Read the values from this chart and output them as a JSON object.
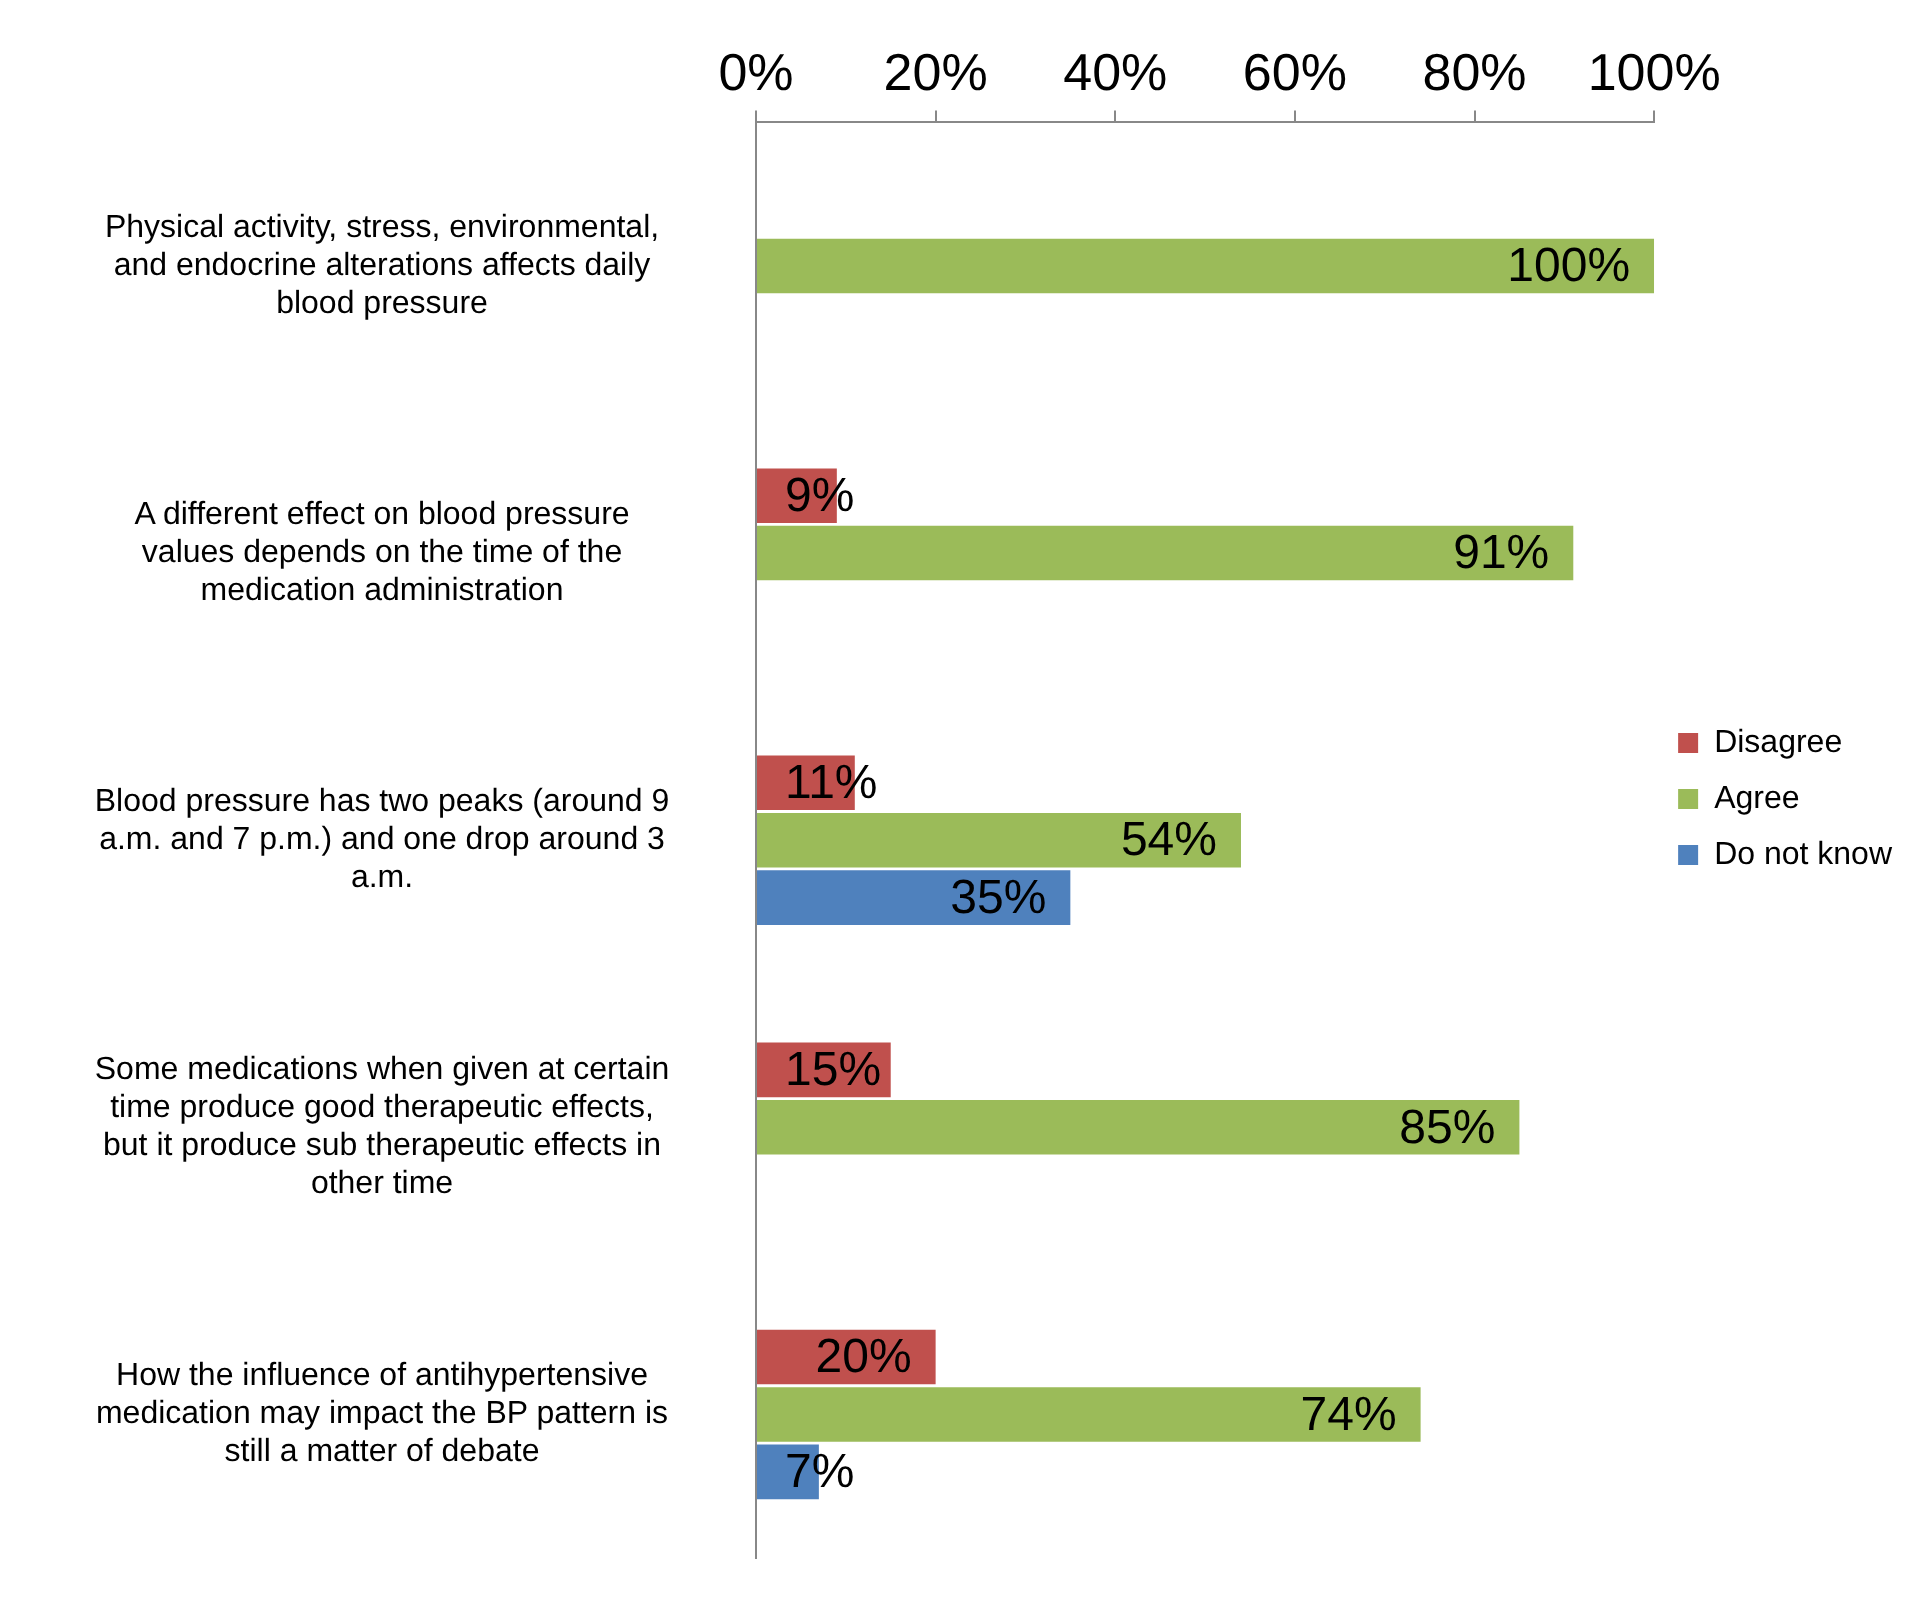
{
  "chart_data": {
    "type": "bar",
    "orientation": "horizontal",
    "categories": [
      "Physical activity, stress, environmental, and endocrine alterations affects daily blood pressure",
      "A different effect on blood pressure values depends on the time of the medication administration",
      "Blood pressure has two peaks (around 9 a.m. and 7 p.m.) and one drop around 3 a.m.",
      "Some medications when given at certain time produce good therapeutic effects, but it produce sub therapeutic effects in other time",
      "How the influence of antihypertensive medication may impact the BP pattern is still a matter of debate"
    ],
    "series": [
      {
        "name": "Disagree",
        "color": "#c0504d",
        "values": [
          null,
          9,
          11,
          15,
          20
        ],
        "value_labels": [
          null,
          "9%",
          "11%",
          "15%",
          "20%"
        ]
      },
      {
        "name": "Agree",
        "color": "#9bbb59",
        "values": [
          100,
          91,
          54,
          85,
          74
        ],
        "value_labels": [
          "100%",
          "91%",
          "54%",
          "85%",
          "74%"
        ]
      },
      {
        "name": "Do not know",
        "color": "#4f81bd",
        "values": [
          null,
          null,
          35,
          null,
          7
        ],
        "value_labels": [
          null,
          null,
          "35%",
          null,
          "7%"
        ]
      }
    ],
    "xlim": [
      0,
      100
    ],
    "xticks": [
      {
        "value": 0,
        "label": "0%"
      },
      {
        "value": 20,
        "label": "20%"
      },
      {
        "value": 40,
        "label": "40%"
      },
      {
        "value": 60,
        "label": "60%"
      },
      {
        "value": 80,
        "label": "80%"
      },
      {
        "value": 100,
        "label": "100%"
      }
    ],
    "grid": false,
    "legend": "right"
  }
}
